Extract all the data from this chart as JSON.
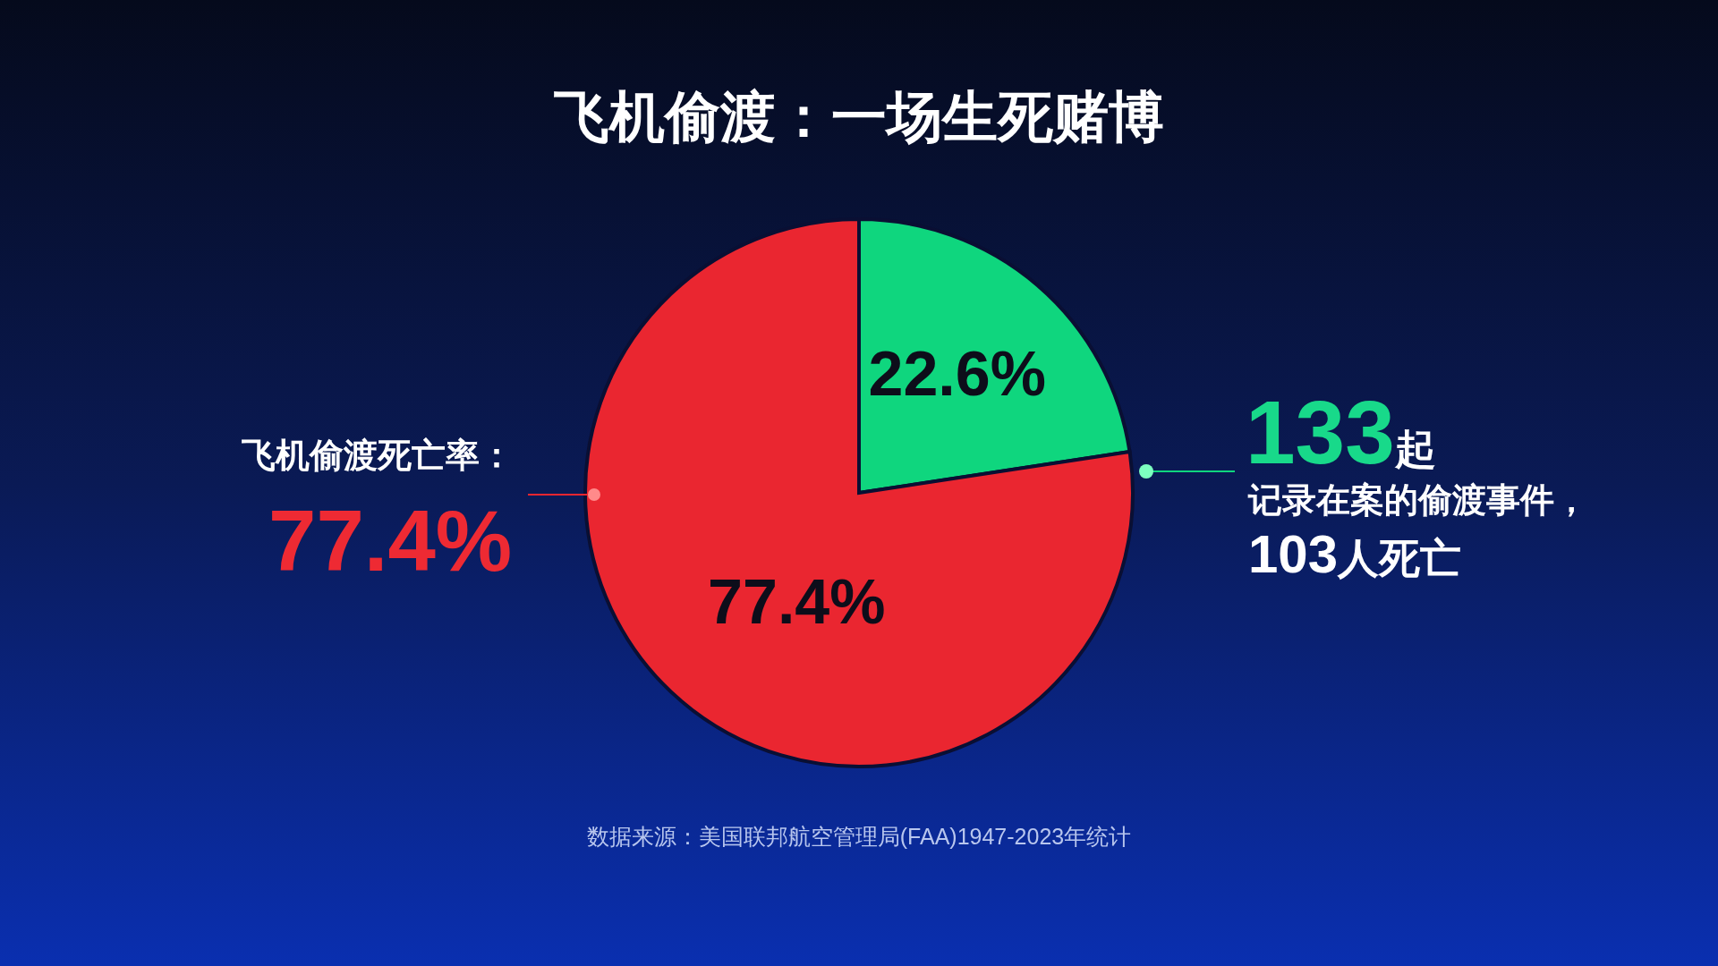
{
  "chart_data": {
    "type": "pie",
    "title": "飞机偷渡：一场生死赌博",
    "categories": [
      null,
      null
    ],
    "values": [
      22.6,
      77.4
    ],
    "colors": [
      "#0fd67e",
      "#ea2630"
    ],
    "value_labels": [
      "22.6%",
      "77.4%"
    ],
    "annotations": [
      "飞机偷渡死亡率：",
      "77.4%",
      "133起",
      "记录在案的偷渡事件，",
      "103人死亡",
      "数据来源：美国联邦航空管理局(FAA)1947-2023年统计"
    ]
  }
}
